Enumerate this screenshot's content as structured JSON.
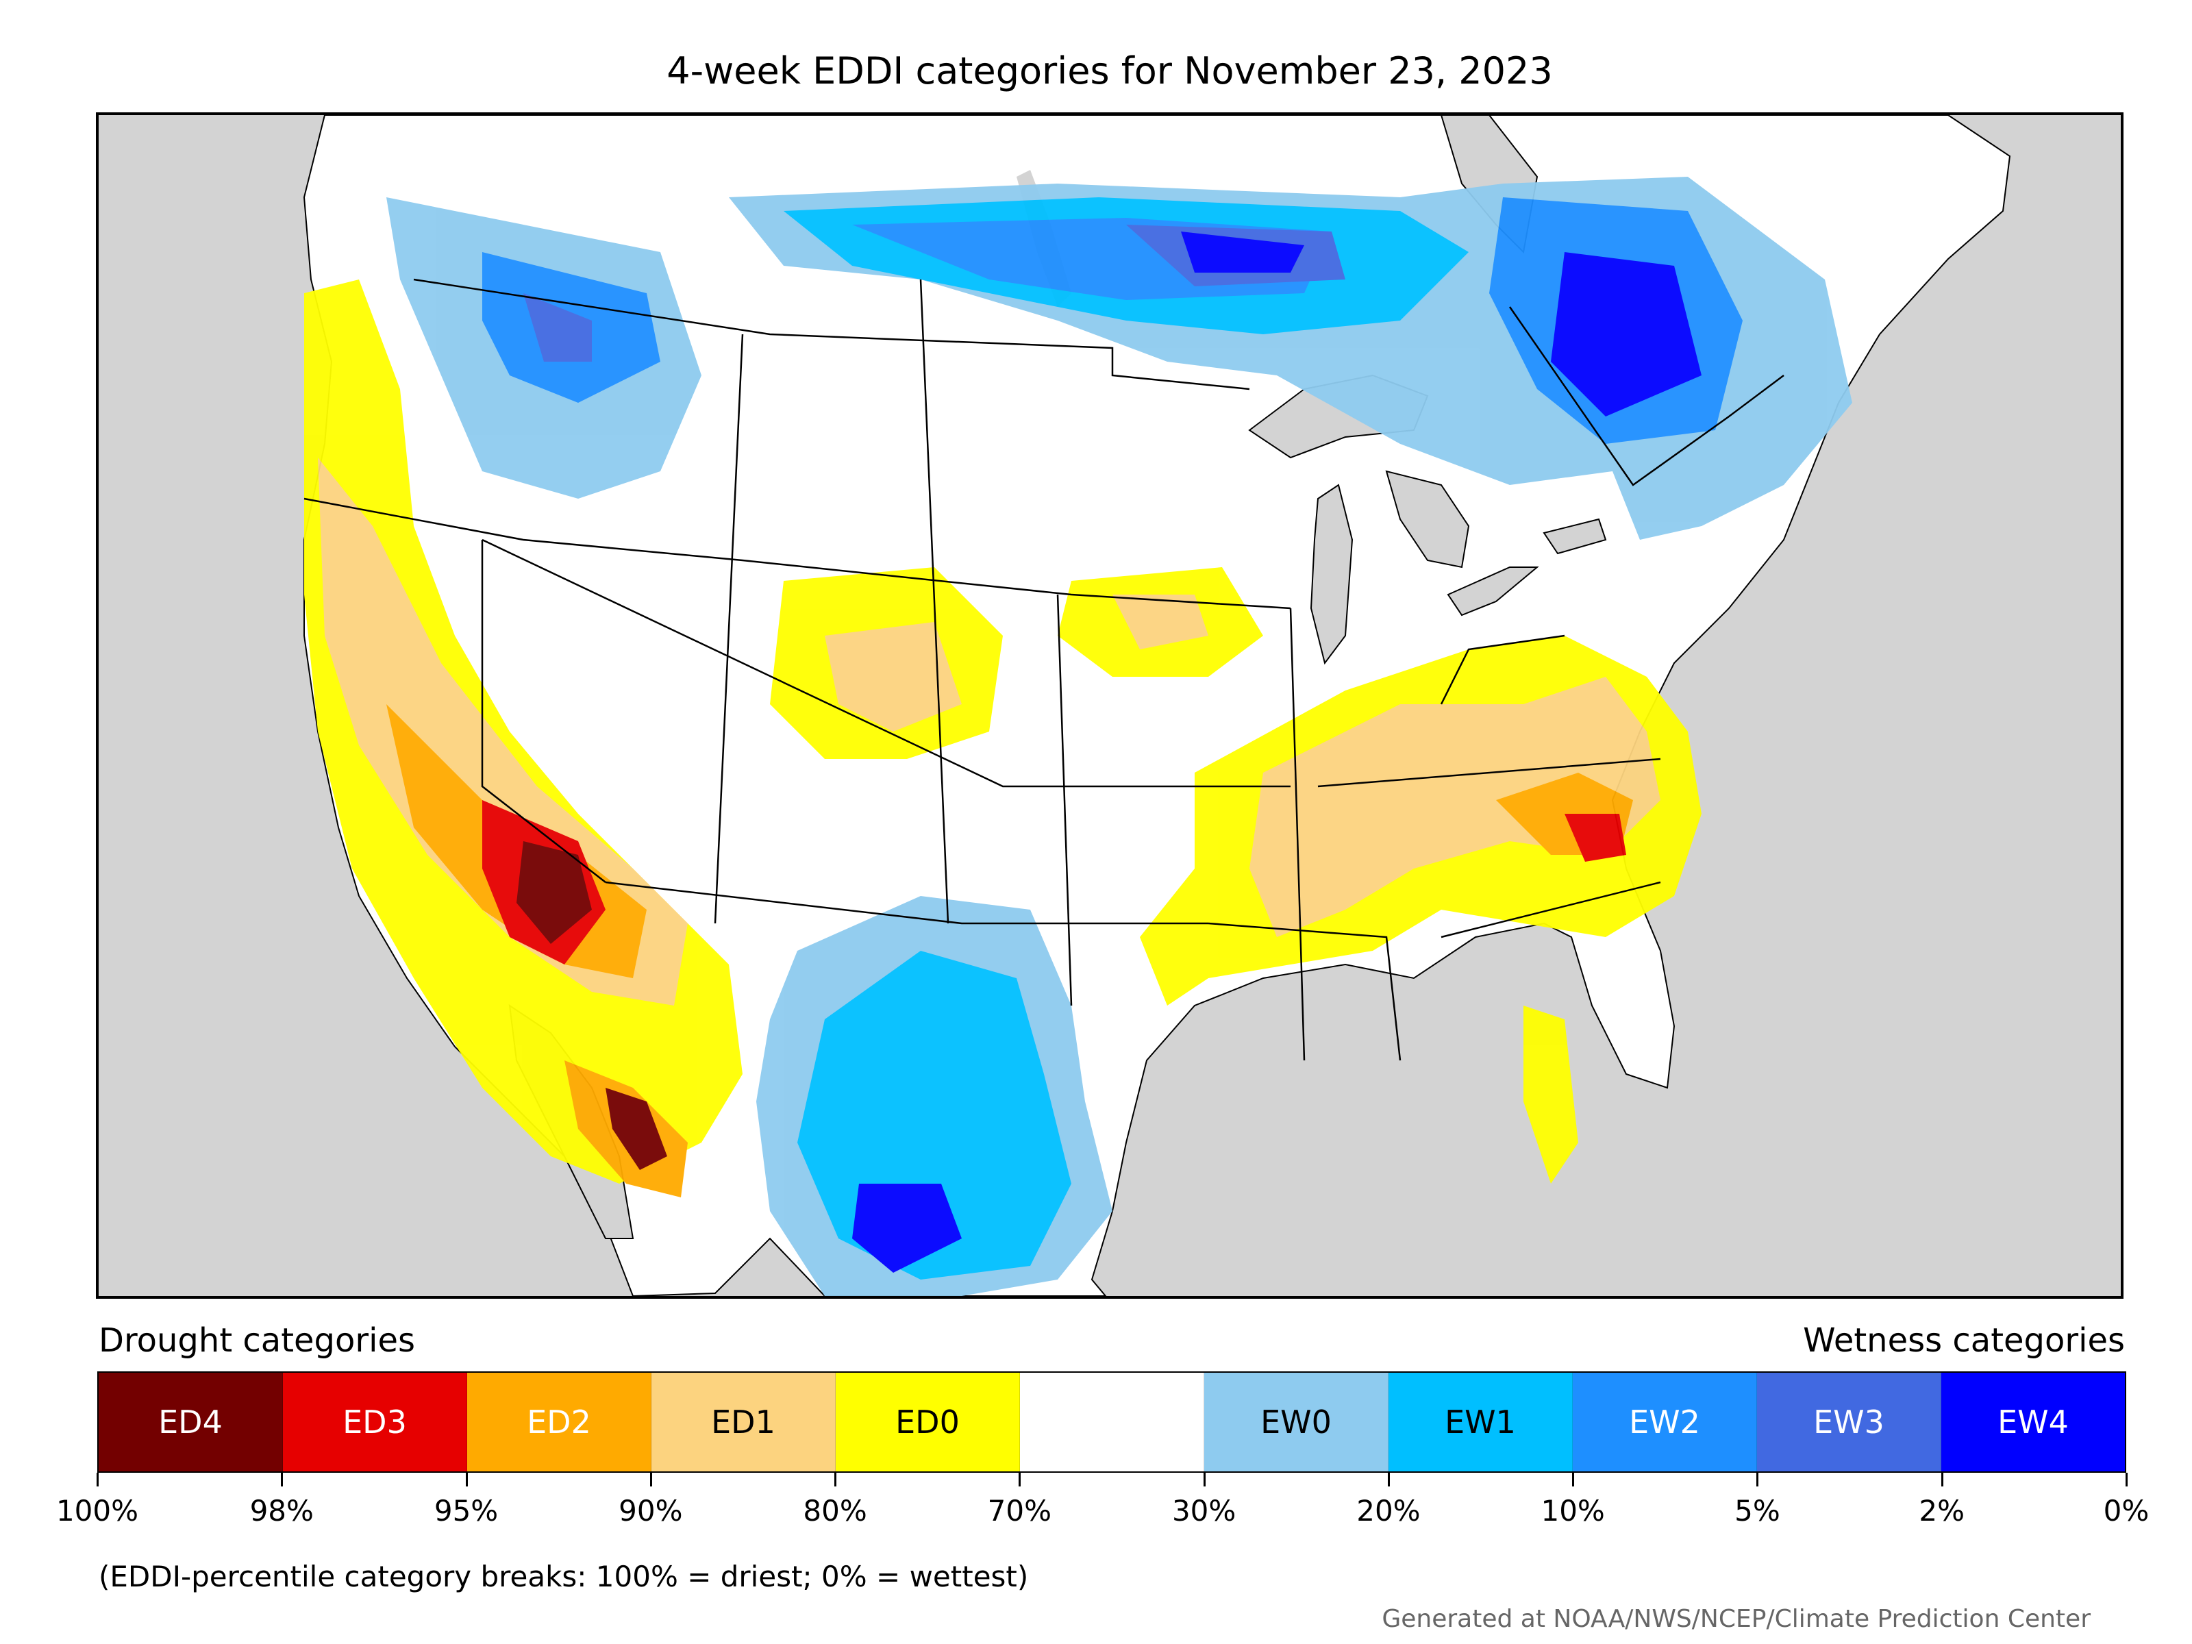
{
  "title": "4-week EDDI categories for November 23, 2023",
  "legend": {
    "drought_heading": "Drought categories",
    "wetness_heading": "Wetness categories",
    "categories": [
      {
        "label": "ED4",
        "color": "#730000",
        "text_color": "#ffffff"
      },
      {
        "label": "ED3",
        "color": "#e60000",
        "text_color": "#ffffff"
      },
      {
        "label": "ED2",
        "color": "#ffaa00",
        "text_color": "#ffffff"
      },
      {
        "label": "ED1",
        "color": "#fcd37f",
        "text_color": "#000000"
      },
      {
        "label": "ED0",
        "color": "#ffff00",
        "text_color": "#000000"
      },
      {
        "label": "",
        "color": "#ffffff",
        "text_color": "#000000"
      },
      {
        "label": "EW0",
        "color": "#8ecbef",
        "text_color": "#000000"
      },
      {
        "label": "EW1",
        "color": "#00bfff",
        "text_color": "#000000"
      },
      {
        "label": "EW2",
        "color": "#1e8fff",
        "text_color": "#ffffff"
      },
      {
        "label": "EW3",
        "color": "#4169e1",
        "text_color": "#ffffff"
      },
      {
        "label": "EW4",
        "color": "#0000ff",
        "text_color": "#ffffff"
      }
    ],
    "ticks": [
      "100%",
      "98%",
      "95%",
      "90%",
      "80%",
      "70%",
      "30%",
      "20%",
      "10%",
      "5%",
      "2%",
      "0%"
    ]
  },
  "note": "(EDDI-percentile category breaks: 100% = driest; 0% = wettest)",
  "credit": "Generated at NOAA/NWS/NCEP/Climate Prediction Center",
  "map": {
    "background_color": "#d3d3d3",
    "land_color": "#ffffff"
  }
}
